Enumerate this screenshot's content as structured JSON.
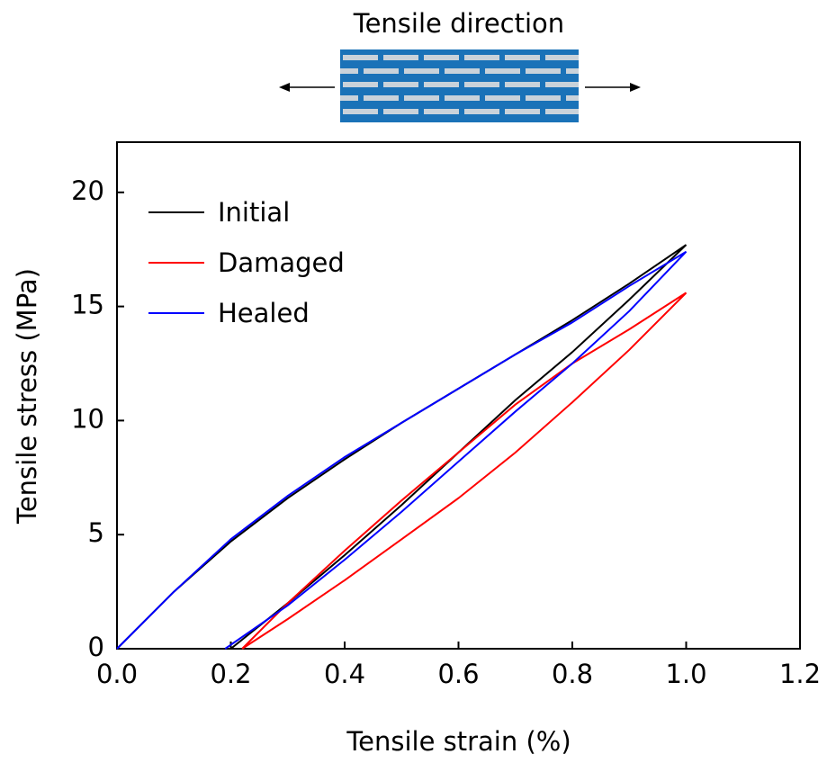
{
  "chart_data": {
    "type": "line",
    "header": "Tensile direction",
    "xlabel": "Tensile strain (%)",
    "ylabel": "Tensile stress (MPa)",
    "xlim": [
      0,
      1.2
    ],
    "ylim": [
      0,
      22.2
    ],
    "xticks": [
      {
        "value": 0,
        "label": "0.0"
      },
      0.2,
      0.4,
      0.6,
      0.8,
      {
        "value": 1,
        "label": "1.0"
      },
      1.2
    ],
    "yticks": [
      0,
      5,
      10,
      15,
      20
    ],
    "legend": "upper left",
    "series": [
      {
        "name": "Initial",
        "color": "#000000",
        "x": [
          0,
          0.1,
          0.2,
          0.3,
          0.4,
          0.5,
          0.6,
          0.7,
          0.8,
          0.9,
          1.0,
          0.9,
          0.8,
          0.7,
          0.6,
          0.5,
          0.4,
          0.3,
          0.2
        ],
        "values": [
          0,
          2.5,
          4.7,
          6.6,
          8.3,
          9.9,
          11.4,
          12.9,
          14.4,
          16.0,
          17.7,
          15.3,
          13.0,
          10.9,
          8.6,
          6.3,
          4.1,
          2.0,
          0
        ]
      },
      {
        "name": "Damaged",
        "color": "#ff0000",
        "x": [
          0.22,
          0.3,
          0.4,
          0.5,
          0.6,
          0.7,
          0.8,
          0.9,
          1.0,
          0.9,
          0.8,
          0.7,
          0.6,
          0.5,
          0.4,
          0.3,
          0.22
        ],
        "values": [
          0,
          1.3,
          3.0,
          4.8,
          6.6,
          8.6,
          10.8,
          13.1,
          15.6,
          14.0,
          12.5,
          10.7,
          8.6,
          6.5,
          4.3,
          2.0,
          0
        ]
      },
      {
        "name": "Healed",
        "color": "#0000ff",
        "x": [
          0,
          0.1,
          0.2,
          0.3,
          0.4,
          0.5,
          0.6,
          0.7,
          0.8,
          0.9,
          1.0,
          0.9,
          0.8,
          0.7,
          0.6,
          0.5,
          0.4,
          0.3,
          0.19
        ],
        "values": [
          0,
          2.5,
          4.8,
          6.7,
          8.4,
          9.9,
          11.4,
          12.9,
          14.3,
          15.9,
          17.4,
          14.8,
          12.5,
          10.4,
          8.2,
          6.0,
          3.9,
          1.9,
          0
        ]
      }
    ]
  }
}
